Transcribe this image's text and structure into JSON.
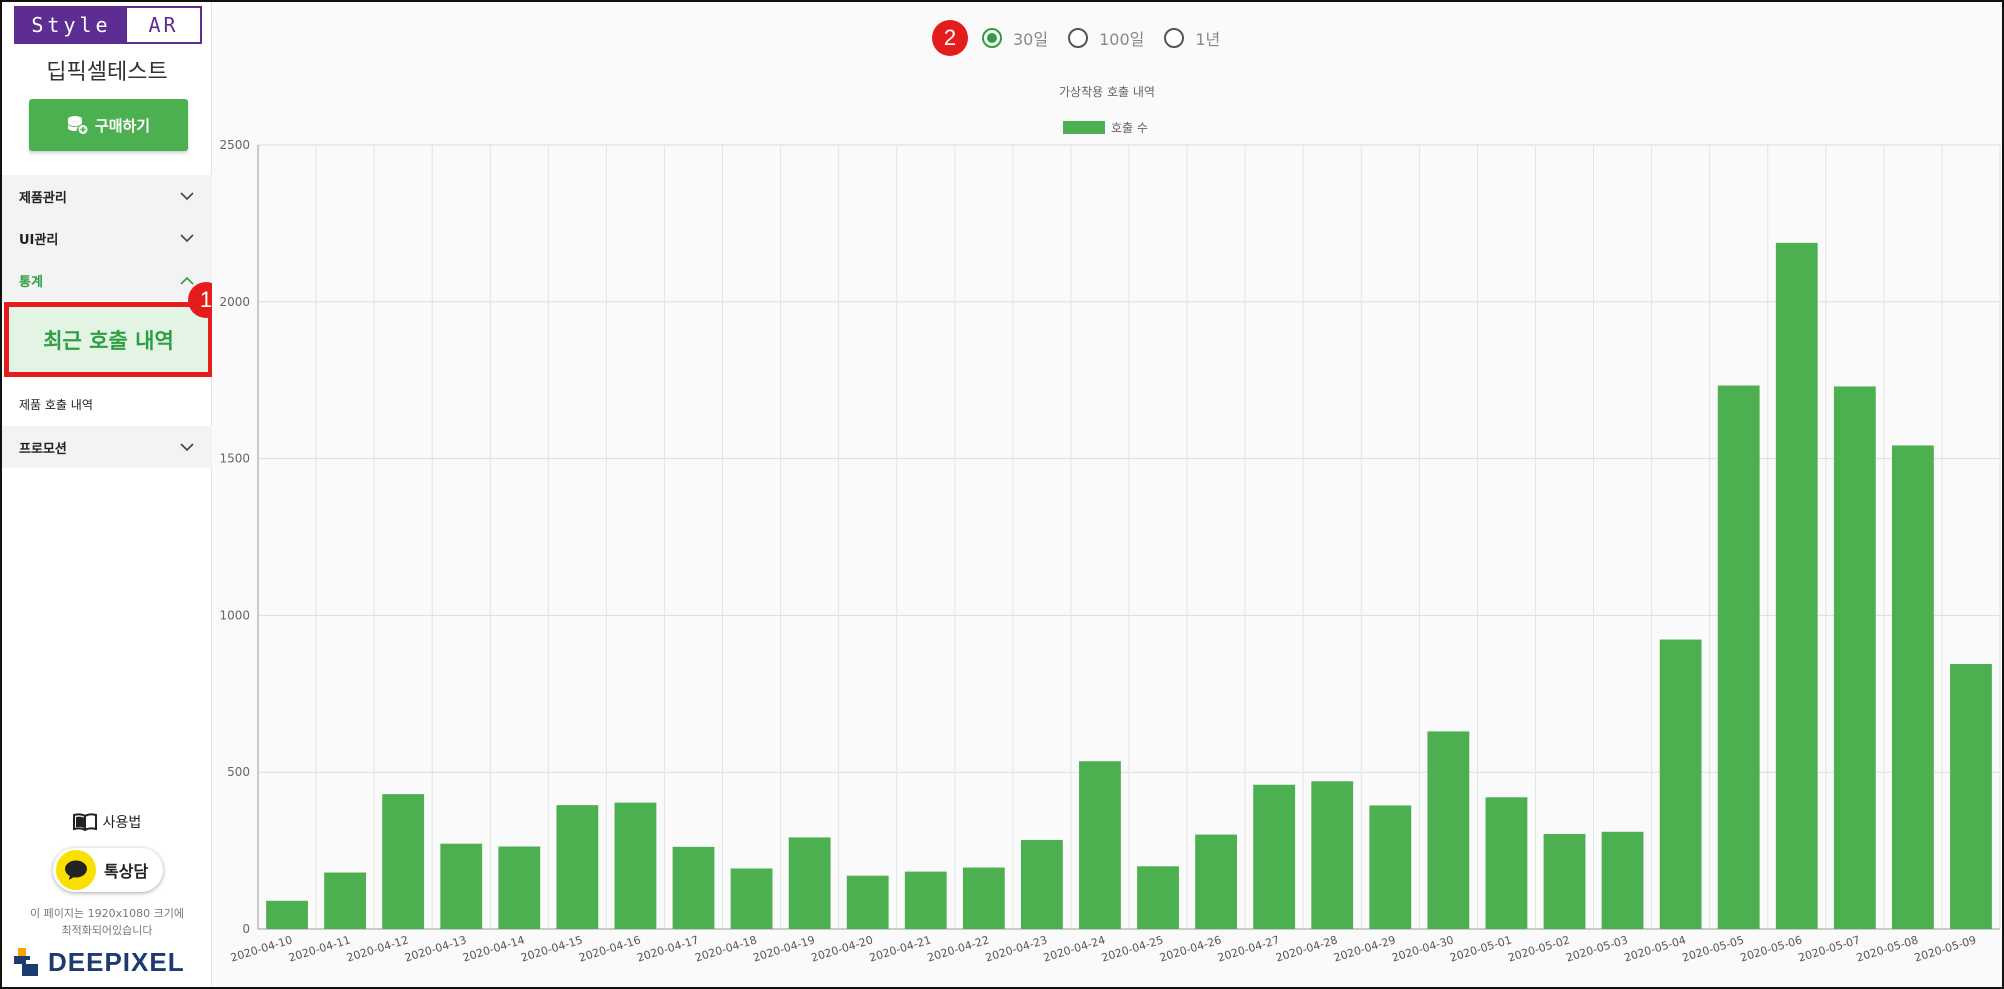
{
  "sidebar": {
    "logo_left": "Style",
    "logo_right": "AR",
    "site_name": "딥픽셀테스트",
    "buy_button": "구매하기",
    "menu": [
      {
        "label": "제품관리",
        "expanded": false
      },
      {
        "label": "UI관리",
        "expanded": false
      },
      {
        "label": "통계",
        "expanded": true
      },
      {
        "label": "프로모션",
        "expanded": false
      }
    ],
    "sub_active": "최근 호출 내역",
    "sub_item": "제품 호출 내역",
    "howto": "사용법",
    "kakao": "톡상담",
    "notice_line1": "이 페이지는 1920x1080 크기에",
    "notice_line2": "최적화되어있습니다",
    "footer_logo": "DEEPIXEL"
  },
  "badges": {
    "b1": "1",
    "b2": "2"
  },
  "range": {
    "options": [
      "30일",
      "100일",
      "1년"
    ],
    "selected": "30일"
  },
  "colors": {
    "accent": "#4caf50",
    "brand": "#5e2d91",
    "highlight": "#e51c1c"
  },
  "chart_data": {
    "type": "bar",
    "title": "가상착용 호출 내역",
    "legend": "top",
    "series": [
      {
        "name": "호출 수",
        "color": "#4caf50",
        "values": [
          90,
          180,
          430,
          272,
          263,
          395,
          403,
          262,
          193,
          292,
          170,
          183,
          196,
          284,
          535,
          200,
          301,
          460,
          471,
          394,
          630,
          420,
          303,
          310,
          923,
          1733,
          2188,
          1730,
          1542,
          845
        ]
      }
    ],
    "categories": [
      "2020-04-10",
      "2020-04-11",
      "2020-04-12",
      "2020-04-13",
      "2020-04-14",
      "2020-04-15",
      "2020-04-16",
      "2020-04-17",
      "2020-04-18",
      "2020-04-19",
      "2020-04-20",
      "2020-04-21",
      "2020-04-22",
      "2020-04-23",
      "2020-04-24",
      "2020-04-25",
      "2020-04-26",
      "2020-04-27",
      "2020-04-28",
      "2020-04-29",
      "2020-04-30",
      "2020-05-01",
      "2020-05-02",
      "2020-05-03",
      "2020-05-04",
      "2020-05-05",
      "2020-05-06",
      "2020-05-07",
      "2020-05-08",
      "2020-05-09"
    ],
    "ylim": [
      0,
      2500
    ],
    "yticks": [
      0,
      500,
      1000,
      1500,
      2000,
      2500
    ],
    "grid": true
  }
}
